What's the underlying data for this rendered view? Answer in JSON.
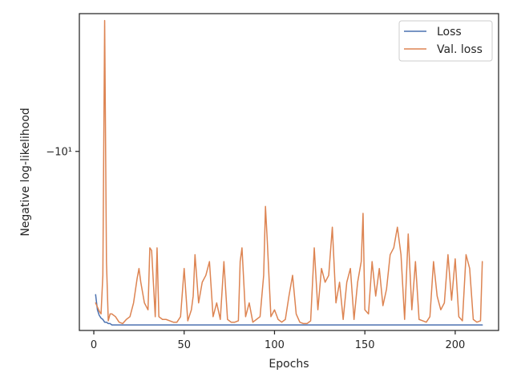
{
  "chart_data": {
    "type": "line",
    "xlabel": "Epochs",
    "ylabel": "Negative log-likelihood",
    "xlim": [
      -8,
      224
    ],
    "ylim": [
      -8.7,
      -11.0
    ],
    "y_scale": "symlog, inverted (more negative upward)",
    "x_ticks": [
      0,
      50,
      100,
      150,
      200
    ],
    "y_ticks": [
      {
        "value": -10,
        "label": "−10¹"
      }
    ],
    "legend": {
      "placement": "top-right"
    },
    "grid": false,
    "series": [
      {
        "name": "Loss",
        "color": "#4c72b0",
        "x": [
          1,
          2,
          3,
          4,
          5,
          6,
          7,
          8,
          9,
          10,
          12,
          15,
          20,
          30,
          40,
          50,
          60,
          70,
          80,
          90,
          100,
          110,
          120,
          130,
          140,
          150,
          160,
          170,
          180,
          190,
          200,
          210,
          215
        ],
        "y": [
          -8.96,
          -8.85,
          -8.81,
          -8.79,
          -8.78,
          -8.76,
          -8.76,
          -8.75,
          -8.75,
          -8.74,
          -8.74,
          -8.74,
          -8.74,
          -8.74,
          -8.74,
          -8.74,
          -8.74,
          -8.74,
          -8.74,
          -8.74,
          -8.74,
          -8.74,
          -8.74,
          -8.74,
          -8.74,
          -8.74,
          -8.74,
          -8.74,
          -8.74,
          -8.74,
          -8.74,
          -8.74,
          -8.74
        ]
      },
      {
        "name": "Val. loss",
        "color": "#dd8452",
        "x": [
          1,
          2,
          3,
          4,
          5,
          6,
          7,
          8,
          9,
          10,
          12,
          14,
          16,
          18,
          20,
          22,
          24,
          25,
          26,
          28,
          30,
          31,
          32,
          34,
          35,
          36,
          38,
          40,
          42,
          44,
          46,
          48,
          50,
          52,
          54,
          55,
          56,
          58,
          60,
          62,
          64,
          66,
          68,
          70,
          72,
          74,
          76,
          78,
          80,
          81,
          82,
          84,
          86,
          88,
          90,
          92,
          94,
          95,
          96,
          98,
          100,
          102,
          104,
          106,
          108,
          110,
          112,
          114,
          116,
          118,
          120,
          122,
          124,
          126,
          128,
          130,
          132,
          134,
          136,
          138,
          140,
          142,
          144,
          146,
          148,
          149,
          150,
          152,
          154,
          156,
          158,
          160,
          162,
          164,
          166,
          168,
          170,
          172,
          174,
          176,
          178,
          180,
          182,
          184,
          186,
          188,
          190,
          192,
          194,
          196,
          198,
          200,
          202,
          204,
          206,
          208,
          210,
          212,
          214,
          215
        ],
        "y": [
          -8.9,
          -8.87,
          -8.84,
          -8.82,
          -9.1,
          -10.95,
          -9.2,
          -8.77,
          -8.82,
          -8.82,
          -8.8,
          -8.76,
          -8.75,
          -8.78,
          -8.8,
          -8.9,
          -9.08,
          -9.15,
          -9.05,
          -8.9,
          -8.85,
          -9.3,
          -9.28,
          -8.8,
          -9.3,
          -8.8,
          -8.78,
          -8.78,
          -8.77,
          -8.76,
          -8.76,
          -8.8,
          -9.15,
          -8.77,
          -8.85,
          -8.95,
          -9.25,
          -8.9,
          -9.05,
          -9.1,
          -9.2,
          -8.8,
          -8.9,
          -8.78,
          -9.2,
          -8.78,
          -8.76,
          -8.76,
          -8.77,
          -9.2,
          -9.3,
          -8.8,
          -8.9,
          -8.76,
          -8.78,
          -8.8,
          -9.1,
          -9.6,
          -9.35,
          -8.8,
          -8.85,
          -8.78,
          -8.76,
          -8.78,
          -8.95,
          -9.1,
          -8.82,
          -8.76,
          -8.75,
          -8.75,
          -8.77,
          -9.3,
          -8.85,
          -9.15,
          -9.05,
          -9.1,
          -9.45,
          -8.9,
          -9.05,
          -8.78,
          -9.05,
          -9.15,
          -8.78,
          -9.05,
          -9.2,
          -9.55,
          -8.85,
          -8.82,
          -9.2,
          -8.95,
          -9.15,
          -8.88,
          -9.0,
          -9.25,
          -9.3,
          -9.45,
          -9.25,
          -8.78,
          -9.4,
          -8.85,
          -9.2,
          -8.78,
          -8.77,
          -8.76,
          -8.8,
          -9.2,
          -8.95,
          -8.85,
          -8.9,
          -9.25,
          -8.92,
          -9.22,
          -8.8,
          -8.77,
          -9.25,
          -9.15,
          -8.78,
          -8.76,
          -8.77,
          -9.2
        ]
      }
    ]
  }
}
